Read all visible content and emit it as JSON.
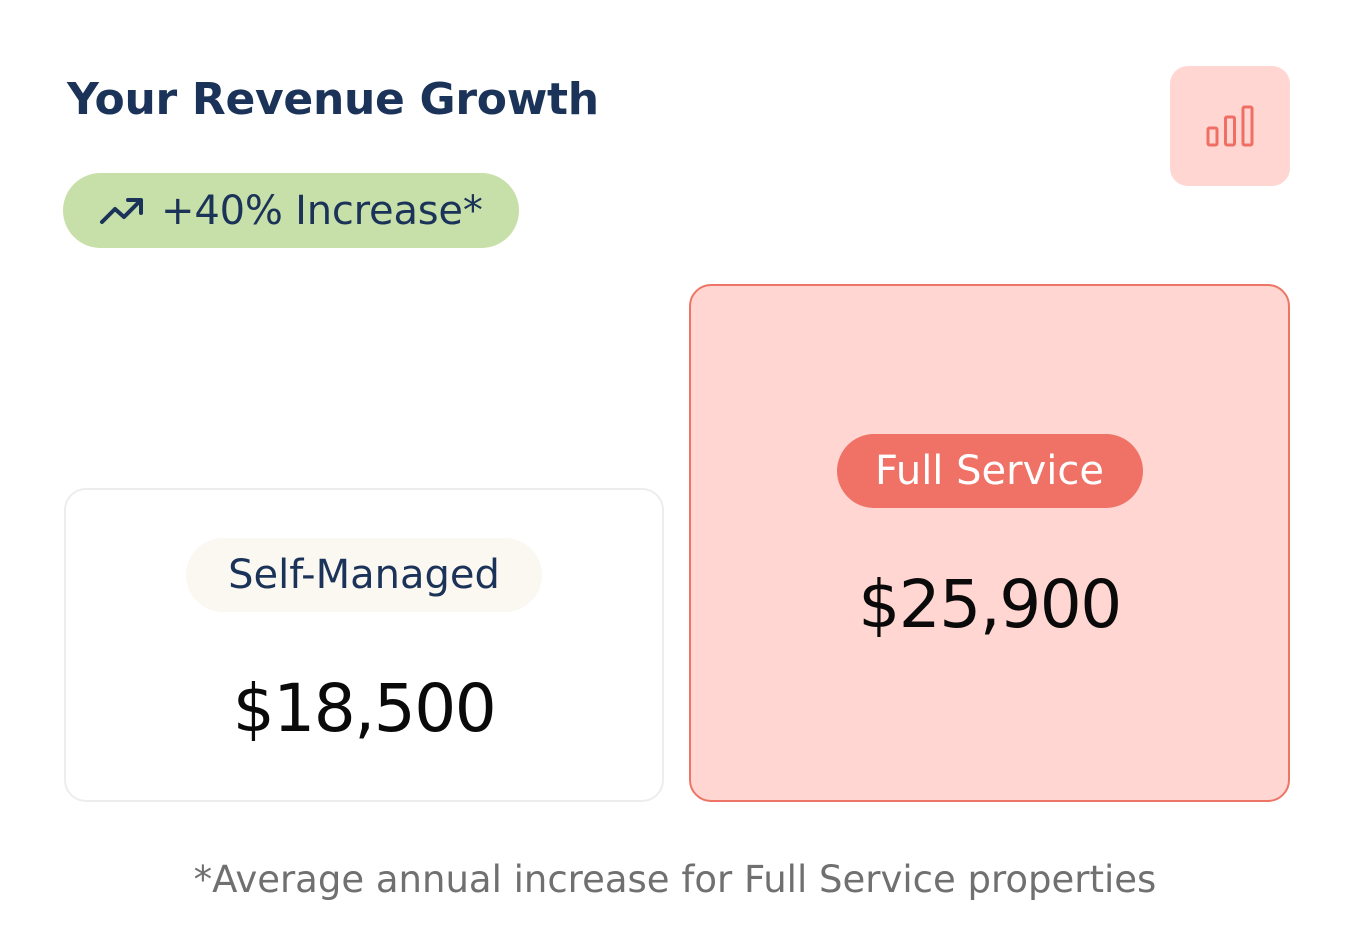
{
  "header": {
    "title": "Your Revenue Growth",
    "chart_icon": "bar-chart-icon"
  },
  "badge": {
    "icon": "trending-up-icon",
    "text": "+40% Increase*"
  },
  "cards": {
    "self_managed": {
      "label": "Self-Managed",
      "amount": "$18,500"
    },
    "full_service": {
      "label": "Full Service",
      "amount": "$25,900"
    }
  },
  "footnote": "*Average annual increase for Full Service properties",
  "colors": {
    "title": "#1b3358",
    "badge_bg": "#c7dfa8",
    "accent": "#f07166",
    "accent_light": "#ffd6d1"
  }
}
